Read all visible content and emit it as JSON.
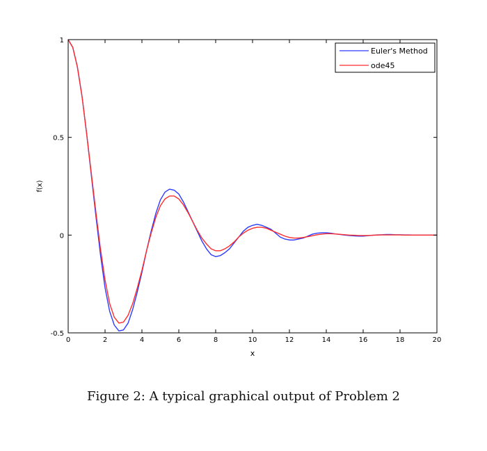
{
  "caption": "Figure 2:  A typical graphical output of Problem 2",
  "chart_data": {
    "type": "line",
    "xlabel": "x",
    "ylabel": "f(x)",
    "xlim": [
      0,
      20
    ],
    "ylim": [
      -0.5,
      1
    ],
    "xticks": [
      0,
      2,
      4,
      6,
      8,
      10,
      12,
      14,
      16,
      18,
      20
    ],
    "xtick_labels": [
      "0",
      "2",
      "4",
      "6",
      "8",
      "10",
      "12",
      "14",
      "16",
      "18",
      "20"
    ],
    "yticks": [
      -0.5,
      0,
      0.5,
      1
    ],
    "ytick_labels": [
      "-0.5",
      "0",
      "0.5",
      "1"
    ],
    "grid": false,
    "legend_position": "top-right",
    "series": [
      {
        "name": "Euler's Method",
        "color": "#2b3bff",
        "x": [
          0,
          0.25,
          0.5,
          0.75,
          1,
          1.25,
          1.5,
          1.75,
          2,
          2.25,
          2.5,
          2.75,
          3,
          3.25,
          3.5,
          3.75,
          4,
          4.25,
          4.5,
          4.75,
          5,
          5.25,
          5.5,
          5.75,
          6,
          6.25,
          6.5,
          6.75,
          7,
          7.25,
          7.5,
          7.75,
          8,
          8.25,
          8.5,
          8.75,
          9,
          9.25,
          9.5,
          9.75,
          10,
          10.25,
          10.5,
          10.75,
          11,
          11.25,
          11.5,
          11.75,
          12,
          12.25,
          12.5,
          12.75,
          13,
          13.25,
          13.5,
          13.75,
          14,
          14.25,
          14.5,
          14.75,
          15,
          15.25,
          15.5,
          15.75,
          16,
          16.25,
          16.5,
          16.75,
          17,
          17.25,
          17.5,
          17.75,
          18,
          18.25,
          18.5,
          18.75,
          19,
          19.25,
          19.5,
          19.75,
          20
        ],
        "y": [
          1,
          0.96,
          0.86,
          0.71,
          0.52,
          0.31,
          0.1,
          -0.1,
          -0.27,
          -0.39,
          -0.46,
          -0.49,
          -0.485,
          -0.45,
          -0.38,
          -0.29,
          -0.19,
          -0.08,
          0.02,
          0.11,
          0.18,
          0.22,
          0.235,
          0.23,
          0.21,
          0.17,
          0.12,
          0.07,
          0.02,
          -0.03,
          -0.07,
          -0.1,
          -0.11,
          -0.105,
          -0.09,
          -0.07,
          -0.04,
          -0.01,
          0.02,
          0.04,
          0.05,
          0.055,
          0.05,
          0.04,
          0.03,
          0.01,
          -0.01,
          -0.02,
          -0.025,
          -0.025,
          -0.02,
          -0.015,
          -0.005,
          0.005,
          0.01,
          0.012,
          0.012,
          0.01,
          0.006,
          0.003,
          0,
          -0.002,
          -0.004,
          -0.005,
          -0.005,
          -0.003,
          -0.001,
          0.001,
          0.002,
          0.003,
          0.003,
          0.002,
          0.002,
          0.001,
          0.001,
          0,
          0,
          0,
          0,
          0,
          0
        ]
      },
      {
        "name": "ode45",
        "color": "#ff2b2b",
        "x": [
          0,
          0.25,
          0.5,
          0.75,
          1,
          1.25,
          1.5,
          1.75,
          2,
          2.25,
          2.5,
          2.75,
          3,
          3.25,
          3.5,
          3.75,
          4,
          4.25,
          4.5,
          4.75,
          5,
          5.25,
          5.5,
          5.75,
          6,
          6.25,
          6.5,
          6.75,
          7,
          7.25,
          7.5,
          7.75,
          8,
          8.25,
          8.5,
          8.75,
          9,
          9.25,
          9.5,
          9.75,
          10,
          10.25,
          10.5,
          10.75,
          11,
          11.25,
          11.5,
          11.75,
          12,
          12.25,
          12.5,
          12.75,
          13,
          13.25,
          13.5,
          13.75,
          14,
          14.25,
          14.5,
          14.75,
          15,
          15.25,
          15.5,
          15.75,
          16,
          16.25,
          16.5,
          16.75,
          17,
          17.25,
          17.5,
          17.75,
          18,
          18.25,
          18.5,
          18.75,
          19,
          19.25,
          19.5,
          19.75,
          20
        ],
        "y": [
          1,
          0.96,
          0.86,
          0.71,
          0.52,
          0.32,
          0.12,
          -0.07,
          -0.23,
          -0.35,
          -0.42,
          -0.45,
          -0.445,
          -0.41,
          -0.35,
          -0.27,
          -0.18,
          -0.08,
          0.01,
          0.09,
          0.15,
          0.185,
          0.2,
          0.2,
          0.185,
          0.155,
          0.115,
          0.07,
          0.025,
          -0.015,
          -0.045,
          -0.07,
          -0.08,
          -0.08,
          -0.07,
          -0.055,
          -0.035,
          -0.01,
          0.01,
          0.025,
          0.035,
          0.04,
          0.04,
          0.035,
          0.025,
          0.015,
          0.005,
          -0.005,
          -0.012,
          -0.015,
          -0.015,
          -0.012,
          -0.008,
          -0.003,
          0.002,
          0.005,
          0.007,
          0.007,
          0.006,
          0.004,
          0.002,
          0,
          -0.001,
          -0.002,
          -0.002,
          -0.002,
          -0.001,
          0,
          0.001,
          0.001,
          0.001,
          0.001,
          0.001,
          0,
          0,
          0,
          0,
          0,
          0,
          0,
          0
        ]
      }
    ]
  }
}
